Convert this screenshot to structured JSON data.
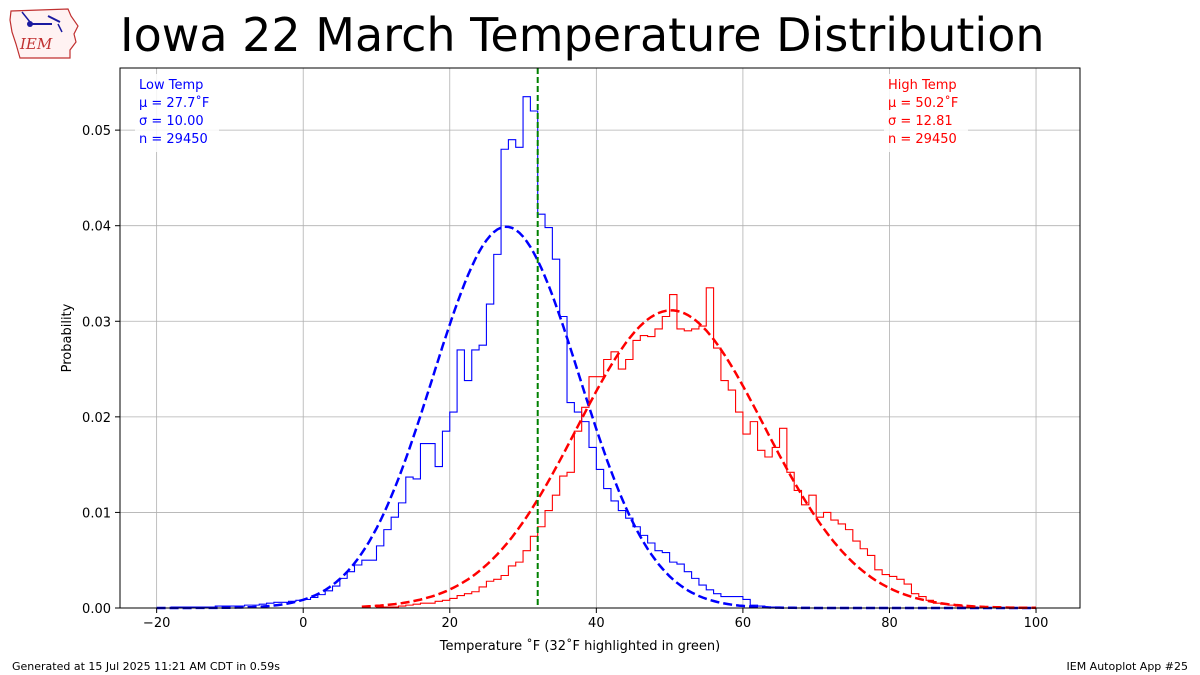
{
  "header": {
    "title": "Iowa 22 March Temperature Distribution",
    "logo_text": "IEM"
  },
  "footer": {
    "left": "Generated at 15 Jul 2025 11:21 AM CDT in 0.59s",
    "right": "IEM Autoplot App #25"
  },
  "colors": {
    "low": "#0000ff",
    "high": "#ff0000",
    "highlight": "#008000",
    "grid": "#b0b0b0"
  },
  "chart_data": {
    "type": "histogram",
    "title": "Iowa 22 March Temperature Distribution",
    "xlabel": "Temperature ˚F (32˚F highlighted in green)",
    "ylabel": "Probability",
    "xlim": [
      -25,
      106
    ],
    "ylim": [
      0,
      0.0565
    ],
    "xticks": [
      -20,
      0,
      20,
      40,
      60,
      80,
      100
    ],
    "xtick_labels": [
      "−20",
      "0",
      "20",
      "40",
      "60",
      "80",
      "100"
    ],
    "yticks": [
      0,
      0.01,
      0.02,
      0.03,
      0.04,
      0.05
    ],
    "ytick_labels": [
      "0.00",
      "0.01",
      "0.02",
      "0.03",
      "0.04",
      "0.05"
    ],
    "grid": true,
    "highlight_x": 32,
    "series": [
      {
        "name": "Low Temp",
        "role": "low",
        "annotation": [
          "Low Temp",
          "μ = 27.7˚F",
          "σ = 10.00",
          "n = 29450"
        ],
        "mean": 27.7,
        "std": 10.0,
        "n": 29450,
        "curve_range": [
          -20,
          100
        ],
        "bins": [
          [
            -20,
            0.0
          ],
          [
            -19,
            0.0
          ],
          [
            -18,
            0.0001
          ],
          [
            -17,
            0.0001
          ],
          [
            -16,
            0.0001
          ],
          [
            -15,
            0.0001
          ],
          [
            -14,
            0.0001
          ],
          [
            -13,
            0.0001
          ],
          [
            -12,
            0.0002
          ],
          [
            -11,
            0.0002
          ],
          [
            -10,
            0.0002
          ],
          [
            -9,
            0.0002
          ],
          [
            -8,
            0.0003
          ],
          [
            -7,
            0.0003
          ],
          [
            -6,
            0.0004
          ],
          [
            -5,
            0.0005
          ],
          [
            -4,
            0.0006
          ],
          [
            -3,
            0.0006
          ],
          [
            -2,
            0.0007
          ],
          [
            -1,
            0.0008
          ],
          [
            0,
            0.0009
          ],
          [
            1,
            0.0011
          ],
          [
            2,
            0.0014
          ],
          [
            3,
            0.0018
          ],
          [
            4,
            0.0023
          ],
          [
            5,
            0.0031
          ],
          [
            6,
            0.0038
          ],
          [
            7,
            0.0045
          ],
          [
            8,
            0.005
          ],
          [
            9,
            0.005
          ],
          [
            10,
            0.0065
          ],
          [
            11,
            0.0082
          ],
          [
            12,
            0.0095
          ],
          [
            13,
            0.011
          ],
          [
            14,
            0.0137
          ],
          [
            15,
            0.0135
          ],
          [
            16,
            0.0172
          ],
          [
            17,
            0.0172
          ],
          [
            18,
            0.0148
          ],
          [
            19,
            0.0185
          ],
          [
            20,
            0.0205
          ],
          [
            21,
            0.027
          ],
          [
            22,
            0.0238
          ],
          [
            23,
            0.027
          ],
          [
            24,
            0.0275
          ],
          [
            25,
            0.0318
          ],
          [
            26,
            0.037
          ],
          [
            27,
            0.048
          ],
          [
            28,
            0.049
          ],
          [
            29,
            0.0482
          ],
          [
            30,
            0.0535
          ],
          [
            31,
            0.052
          ],
          [
            32,
            0.0412
          ],
          [
            33,
            0.0398
          ],
          [
            34,
            0.0365
          ],
          [
            35,
            0.0305
          ],
          [
            36,
            0.0215
          ],
          [
            37,
            0.0205
          ],
          [
            38,
            0.0195
          ],
          [
            39,
            0.0168
          ],
          [
            40,
            0.0145
          ],
          [
            41,
            0.0125
          ],
          [
            42,
            0.0112
          ],
          [
            43,
            0.0102
          ],
          [
            44,
            0.0094
          ],
          [
            45,
            0.0085
          ],
          [
            46,
            0.0076
          ],
          [
            47,
            0.0068
          ],
          [
            48,
            0.006
          ],
          [
            49,
            0.0058
          ],
          [
            50,
            0.0048
          ],
          [
            51,
            0.0046
          ],
          [
            52,
            0.0038
          ],
          [
            53,
            0.0031
          ],
          [
            54,
            0.0024
          ],
          [
            55,
            0.0019
          ],
          [
            56,
            0.0015
          ],
          [
            57,
            0.0012
          ],
          [
            58,
            0.0012
          ],
          [
            59,
            0.0012
          ],
          [
            60,
            0.0009
          ],
          [
            61,
            0.0003
          ],
          [
            62,
            0.0002
          ],
          [
            63,
            0.0001
          ],
          [
            64,
            0.0001
          ],
          [
            65,
            0.0
          ],
          [
            66,
            0.0
          ],
          [
            67,
            0.0
          ],
          [
            68,
            0.0
          ],
          [
            69,
            0.0
          ],
          [
            70,
            0.0
          ]
        ]
      },
      {
        "name": "High Temp",
        "role": "high",
        "annotation": [
          "High Temp",
          "μ = 50.2˚F",
          "σ = 12.81",
          "n = 29450"
        ],
        "mean": 50.2,
        "std": 12.81,
        "n": 29450,
        "curve_range": [
          8,
          100
        ],
        "bins": [
          [
            8,
            0.0
          ],
          [
            9,
            0.0
          ],
          [
            10,
            0.0001
          ],
          [
            11,
            0.0001
          ],
          [
            12,
            0.0001
          ],
          [
            13,
            0.0002
          ],
          [
            14,
            0.0003
          ],
          [
            15,
            0.0004
          ],
          [
            16,
            0.0005
          ],
          [
            17,
            0.0005
          ],
          [
            18,
            0.0007
          ],
          [
            19,
            0.0008
          ],
          [
            20,
            0.001
          ],
          [
            21,
            0.0013
          ],
          [
            22,
            0.0015
          ],
          [
            23,
            0.0017
          ],
          [
            24,
            0.0022
          ],
          [
            25,
            0.0028
          ],
          [
            26,
            0.003
          ],
          [
            27,
            0.0034
          ],
          [
            28,
            0.0044
          ],
          [
            29,
            0.0048
          ],
          [
            30,
            0.006
          ],
          [
            31,
            0.0075
          ],
          [
            32,
            0.0085
          ],
          [
            33,
            0.0102
          ],
          [
            34,
            0.0118
          ],
          [
            35,
            0.0138
          ],
          [
            36,
            0.0142
          ],
          [
            37,
            0.0185
          ],
          [
            38,
            0.021
          ],
          [
            39,
            0.0242
          ],
          [
            40,
            0.0242
          ],
          [
            41,
            0.026
          ],
          [
            42,
            0.0268
          ],
          [
            43,
            0.025
          ],
          [
            44,
            0.026
          ],
          [
            45,
            0.028
          ],
          [
            46,
            0.0285
          ],
          [
            47,
            0.0284
          ],
          [
            48,
            0.0292
          ],
          [
            49,
            0.0305
          ],
          [
            50,
            0.0328
          ],
          [
            51,
            0.0292
          ],
          [
            52,
            0.029
          ],
          [
            53,
            0.0292
          ],
          [
            54,
            0.0295
          ],
          [
            55,
            0.0335
          ],
          [
            56,
            0.0272
          ],
          [
            57,
            0.0238
          ],
          [
            58,
            0.0228
          ],
          [
            59,
            0.0205
          ],
          [
            60,
            0.0182
          ],
          [
            61,
            0.0195
          ],
          [
            62,
            0.0165
          ],
          [
            63,
            0.0158
          ],
          [
            64,
            0.0168
          ],
          [
            65,
            0.0188
          ],
          [
            66,
            0.0142
          ],
          [
            67,
            0.0123
          ],
          [
            68,
            0.0108
          ],
          [
            69,
            0.0118
          ],
          [
            70,
            0.0095
          ],
          [
            71,
            0.01
          ],
          [
            72,
            0.0092
          ],
          [
            73,
            0.0088
          ],
          [
            74,
            0.0082
          ],
          [
            75,
            0.007
          ],
          [
            76,
            0.0062
          ],
          [
            77,
            0.0055
          ],
          [
            78,
            0.004
          ],
          [
            79,
            0.0035
          ],
          [
            80,
            0.0033
          ],
          [
            81,
            0.003
          ],
          [
            82,
            0.0025
          ],
          [
            83,
            0.0015
          ],
          [
            84,
            0.0012
          ],
          [
            85,
            0.0008
          ],
          [
            86,
            0.0005
          ],
          [
            87,
            0.0004
          ],
          [
            88,
            0.0003
          ],
          [
            89,
            0.0002
          ],
          [
            90,
            0.0001
          ],
          [
            91,
            0.0001
          ],
          [
            92,
            0.0
          ],
          [
            93,
            0.0
          ],
          [
            94,
            0.0
          ]
        ]
      }
    ]
  }
}
